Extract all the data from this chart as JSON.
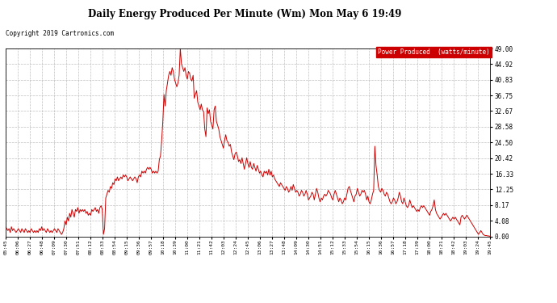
{
  "title": "Daily Energy Produced Per Minute (Wm) Mon May 6 19:49",
  "copyright": "Copyright 2019 Cartronics.com",
  "legend_text": "Power Produced  (watts/minute)",
  "legend_bg": "#cc0000",
  "legend_fg": "#ffffff",
  "line_color": "#cc0000",
  "background_color": "#ffffff",
  "grid_color": "#b0b0b0",
  "ylim": [
    0,
    49.0
  ],
  "yticks": [
    0.0,
    4.08,
    8.17,
    12.25,
    16.33,
    20.42,
    24.5,
    28.58,
    32.67,
    36.75,
    40.83,
    44.92,
    49.0
  ],
  "x_labels": [
    "05:45",
    "06:06",
    "06:27",
    "06:48",
    "07:09",
    "07:30",
    "07:51",
    "08:12",
    "08:33",
    "08:54",
    "09:15",
    "09:36",
    "09:57",
    "10:18",
    "10:39",
    "11:00",
    "11:21",
    "11:42",
    "12:03",
    "12:24",
    "12:45",
    "13:06",
    "13:27",
    "13:48",
    "14:09",
    "14:30",
    "14:51",
    "15:12",
    "15:33",
    "15:54",
    "16:15",
    "16:36",
    "16:57",
    "17:18",
    "17:39",
    "18:00",
    "18:21",
    "18:42",
    "19:03",
    "19:24",
    "19:45"
  ],
  "data_y": [
    2.5,
    2.0,
    1.5,
    2.0,
    1.0,
    2.5,
    1.5,
    2.0,
    1.5,
    1.0,
    1.5,
    2.0,
    1.5,
    1.0,
    2.0,
    1.5,
    1.0,
    2.0,
    1.5,
    1.0,
    1.5,
    1.0,
    2.0,
    1.5,
    1.0,
    1.5,
    1.0,
    1.5,
    1.0,
    2.0,
    1.5,
    2.5,
    1.5,
    2.0,
    1.5,
    1.0,
    2.0,
    1.5,
    1.0,
    1.5,
    1.0,
    1.5,
    2.0,
    1.5,
    1.0,
    2.0,
    1.5,
    1.0,
    0.5,
    1.0,
    2.0,
    4.0,
    3.0,
    5.0,
    4.0,
    6.0,
    5.0,
    7.0,
    6.0,
    5.0,
    7.0,
    6.5,
    7.5,
    6.0,
    7.0,
    6.5,
    7.0,
    6.5,
    7.0,
    6.0,
    6.5,
    5.5,
    6.0,
    5.5,
    7.0,
    6.5,
    7.0,
    7.5,
    6.5,
    7.0,
    6.0,
    7.5,
    8.0,
    7.0,
    0.5,
    2.0,
    10.0,
    11.0,
    12.0,
    11.5,
    13.0,
    12.5,
    14.0,
    13.5,
    15.0,
    14.5,
    15.5,
    14.5,
    15.0,
    15.5,
    15.0,
    16.0,
    15.5,
    16.0,
    15.5,
    14.5,
    15.0,
    15.5,
    15.0,
    14.5,
    15.0,
    15.5,
    15.0,
    14.0,
    15.5,
    16.0,
    15.5,
    17.0,
    16.5,
    17.0,
    16.5,
    17.5,
    18.0,
    17.5,
    18.0,
    17.5,
    16.5,
    17.0,
    16.5,
    17.0,
    16.5,
    17.0,
    20.0,
    21.0,
    25.0,
    30.0,
    37.0,
    34.0,
    38.0,
    40.0,
    42.0,
    43.0,
    42.0,
    44.0,
    43.0,
    41.0,
    40.0,
    39.0,
    40.0,
    42.0,
    49.0,
    45.0,
    44.0,
    43.0,
    44.0,
    42.0,
    41.0,
    43.0,
    42.5,
    41.0,
    40.5,
    42.0,
    36.0,
    37.0,
    38.0,
    35.0,
    34.0,
    33.0,
    34.5,
    33.0,
    32.5,
    28.0,
    26.0,
    33.5,
    32.0,
    33.0,
    30.0,
    29.0,
    28.0,
    33.0,
    34.0,
    30.0,
    29.0,
    28.0,
    26.0,
    25.0,
    24.0,
    23.0,
    25.0,
    26.5,
    25.0,
    24.5,
    23.5,
    24.0,
    22.0,
    21.0,
    20.0,
    21.5,
    22.0,
    21.0,
    19.5,
    20.0,
    19.0,
    20.5,
    19.0,
    17.5,
    19.0,
    20.5,
    19.0,
    18.0,
    19.5,
    18.0,
    17.5,
    19.0,
    18.0,
    17.0,
    18.5,
    17.5,
    16.5,
    17.0,
    16.0,
    15.5,
    17.0,
    16.5,
    17.0,
    16.0,
    17.5,
    16.0,
    17.0,
    15.5,
    16.0,
    15.0,
    14.5,
    14.0,
    13.5,
    13.0,
    14.0,
    13.5,
    13.0,
    12.5,
    12.0,
    13.0,
    12.5,
    11.5,
    12.0,
    13.0,
    12.0,
    13.5,
    12.5,
    11.5,
    12.0,
    11.5,
    10.5,
    11.0,
    12.0,
    11.5,
    10.5,
    11.0,
    12.0,
    11.0,
    9.5,
    10.0,
    10.5,
    11.5,
    11.0,
    9.5,
    11.0,
    12.5,
    11.5,
    10.0,
    9.0,
    10.0,
    9.5,
    10.5,
    11.0,
    10.5,
    11.0,
    12.0,
    11.5,
    11.0,
    10.0,
    9.5,
    11.0,
    12.0,
    11.0,
    10.0,
    9.0,
    10.0,
    9.5,
    8.5,
    9.0,
    10.0,
    9.5,
    11.0,
    12.5,
    13.0,
    12.0,
    11.0,
    10.0,
    9.0,
    10.5,
    11.0,
    12.5,
    11.5,
    10.5,
    11.0,
    12.0,
    11.5,
    12.0,
    11.0,
    9.5,
    10.5,
    9.0,
    8.5,
    9.5,
    11.0,
    12.0,
    23.5,
    18.5,
    16.0,
    13.0,
    12.0,
    11.5,
    12.5,
    12.0,
    11.0,
    10.5,
    11.5,
    11.0,
    10.0,
    9.0,
    8.5,
    9.0,
    10.0,
    9.5,
    8.5,
    9.0,
    10.0,
    11.5,
    10.5,
    9.0,
    8.5,
    10.0,
    9.0,
    8.0,
    7.5,
    8.0,
    9.5,
    8.5,
    7.5,
    8.0,
    7.5,
    7.0,
    6.5,
    7.0,
    6.5,
    7.5,
    8.0,
    7.5,
    8.0,
    7.5,
    7.0,
    6.5,
    6.0,
    5.5,
    6.5,
    7.0,
    8.0,
    9.5,
    7.0,
    6.0,
    5.5,
    5.0,
    4.5,
    5.0,
    5.5,
    6.0,
    5.5,
    6.0,
    5.5,
    5.0,
    4.5,
    4.0,
    4.5,
    5.0,
    4.5,
    5.0,
    4.5,
    4.0,
    3.5,
    3.0,
    5.0,
    5.5,
    5.0,
    4.5,
    5.0,
    5.5,
    5.0,
    4.5,
    4.0,
    3.5,
    3.0,
    2.5,
    2.0,
    1.5,
    1.0,
    0.5,
    1.0,
    1.5,
    1.0,
    0.5,
    0.3,
    0.2,
    0.2,
    0.1,
    0.1,
    0.0
  ]
}
